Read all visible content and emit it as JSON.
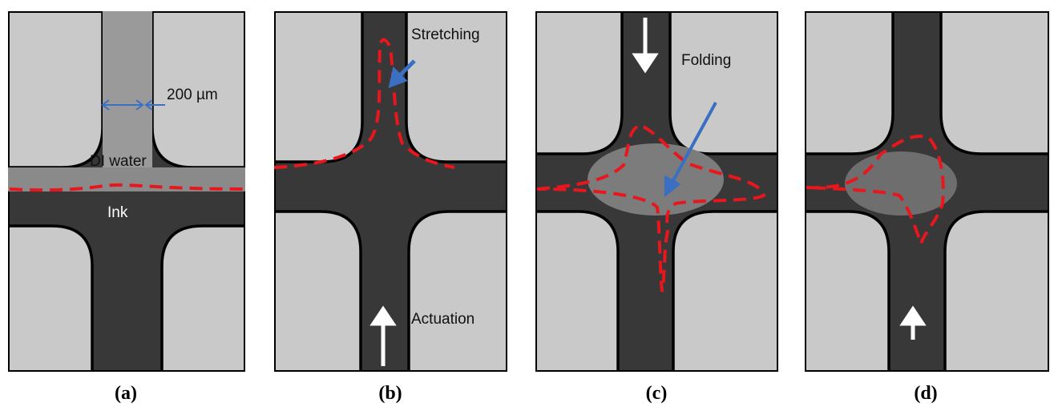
{
  "panels": [
    {
      "annotations": [
        "200 µm",
        "DI water",
        "Ink"
      ],
      "caption": "(a)"
    },
    {
      "annotations": [
        "Stretching",
        "Actuation"
      ],
      "caption": "(b)"
    },
    {
      "annotations": [
        "Folding"
      ],
      "caption": "(c)"
    },
    {
      "annotations": [],
      "caption": "(d)"
    }
  ]
}
